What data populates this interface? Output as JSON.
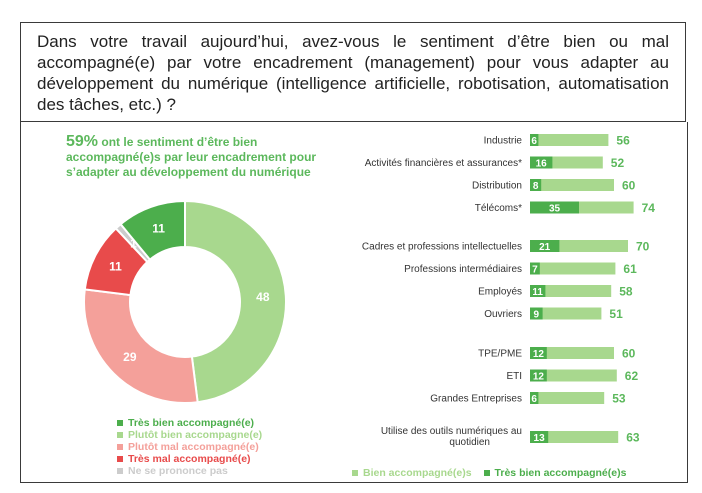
{
  "question": "Dans votre travail aujourd’hui, avez-vous le sentiment d’être bien ou mal accompagné(e) par votre encadrement (management) pour vous adapter au développement du numérique (intelligence artificielle, robotisation, automatisation des tâches, etc.) ?",
  "headline": {
    "percent": "59%",
    "text": " ont le sentiment d’être bien accompagné(e)s par leur encadrement pour s’adapter au développement du numérique"
  },
  "colors": {
    "tres_bien": "#4cae4c",
    "plutot_bien": "#a8d88e",
    "plutot_mal": "#f4a09a",
    "tres_mal": "#e84b4b",
    "ne_se_prononce_pas": "#cccccc",
    "bar_label_green": "#5cb85c"
  },
  "chart_data": [
    {
      "type": "pie",
      "donut": true,
      "slices": [
        {
          "name": "Plutôt bien accompagné(e)",
          "value": 48,
          "color": "#a8d88e"
        },
        {
          "name": "Plutôt mal accompagné(e)",
          "value": 29,
          "color": "#f4a09a"
        },
        {
          "name": "Très mal accompagné(e)",
          "value": 11,
          "color": "#e84b4b"
        },
        {
          "name": "Ne se prononce pas",
          "value": 1,
          "color": "#cccccc"
        },
        {
          "name": "Très bien accompagné(e)",
          "value": 11,
          "color": "#4cae4c"
        }
      ],
      "legend": [
        {
          "name": "Très bien accompagné(e)",
          "color": "#4cae4c"
        },
        {
          "name": "Plutôt bien accompagne(e)",
          "color": "#a8d88e"
        },
        {
          "name": "Plutôt mal accompagné(e)",
          "color": "#f4a09a"
        },
        {
          "name": "Très mal accompagné(e)",
          "color": "#e84b4b"
        },
        {
          "name": "Ne se prononce pas",
          "color": "#cccccc"
        }
      ],
      "legend_placement": "bottom"
    },
    {
      "type": "bar",
      "orientation": "horizontal",
      "stacked": true,
      "groups": [
        {
          "rows": [
            {
              "label": "Industrie",
              "tres_bien": 6,
              "bien": 56
            },
            {
              "label": "Activités financières et assurances*",
              "tres_bien": 16,
              "bien": 52
            },
            {
              "label": "Distribution",
              "tres_bien": 8,
              "bien": 60
            },
            {
              "label": "Télécoms*",
              "tres_bien": 35,
              "bien": 74
            }
          ]
        },
        {
          "rows": [
            {
              "label": "Cadres et professions intellectuelles",
              "tres_bien": 21,
              "bien": 70
            },
            {
              "label": "Professions intermédiaires",
              "tres_bien": 7,
              "bien": 61
            },
            {
              "label": "Employés",
              "tres_bien": 11,
              "bien": 58
            },
            {
              "label": "Ouvriers",
              "tres_bien": 9,
              "bien": 51
            }
          ]
        },
        {
          "rows": [
            {
              "label": "TPE/PME",
              "tres_bien": 12,
              "bien": 60
            },
            {
              "label": "ETI",
              "tres_bien": 12,
              "bien": 62
            },
            {
              "label": "Grandes Entreprises",
              "tres_bien": 6,
              "bien": 53
            }
          ]
        },
        {
          "rows": [
            {
              "label": "Utilise des outils numériques au quotidien",
              "tres_bien": 13,
              "bien": 63
            }
          ]
        }
      ],
      "legend": [
        {
          "name": "Bien accompagné(e)s",
          "color": "#a8d88e"
        },
        {
          "name": "Très bien accompagné(e)s",
          "color": "#4cae4c"
        }
      ],
      "legend_placement": "bottom"
    }
  ]
}
